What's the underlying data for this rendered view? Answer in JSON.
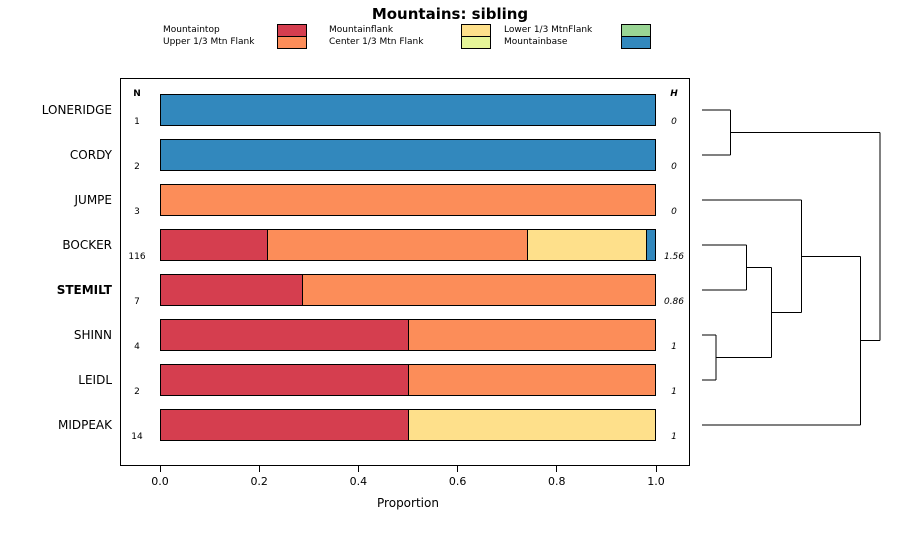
{
  "title": "Mountains: sibling",
  "legend": {
    "columns": [
      {
        "entries": [
          {
            "label": "Mountaintop",
            "color": "#d53e4f"
          },
          {
            "label": "Upper 1/3 Mtn Flank",
            "color": "#fc8d59"
          }
        ]
      },
      {
        "entries": [
          {
            "label": "Mountainflank",
            "color": "#fee08b"
          },
          {
            "label": "Center 1/3 Mtn Flank",
            "color": "#e6f598"
          }
        ]
      },
      {
        "entries": [
          {
            "label": "Lower 1/3 MtnFlank",
            "color": "#99d594"
          },
          {
            "label": "Mountainbase",
            "color": "#3288bd"
          }
        ]
      }
    ]
  },
  "chart_data": {
    "type": "bar",
    "orientation": "horizontal",
    "stacked": true,
    "title": "Mountains: sibling",
    "xlabel": "Proportion",
    "xlim": [
      0,
      1
    ],
    "xticks": [
      "0.0",
      "0.2",
      "0.4",
      "0.6",
      "0.8",
      "1.0"
    ],
    "n_header": "N",
    "h_header": "H",
    "categories": [
      "LONERIDGE",
      "CORDY",
      "JUMPE",
      "BOCKER",
      "STEMILT",
      "SHINN",
      "LEIDL",
      "MIDPEAK"
    ],
    "bold_category": "STEMILT",
    "n_values": [
      "1",
      "2",
      "3",
      "116",
      "7",
      "4",
      "2",
      "14"
    ],
    "h_values": [
      "0",
      "0",
      "0",
      "1.56",
      "0.86",
      "1",
      "1",
      "1"
    ],
    "series": [
      {
        "name": "Mountaintop",
        "color": "#d53e4f",
        "values": [
          0,
          0,
          0,
          0.2155,
          0.2857,
          0.5,
          0.5,
          0.5
        ]
      },
      {
        "name": "Upper 1/3 Mtn Flank",
        "color": "#fc8d59",
        "values": [
          0,
          0,
          1,
          0.5259,
          0.7143,
          0.5,
          0.5,
          0
        ]
      },
      {
        "name": "Mountainflank",
        "color": "#fee08b",
        "values": [
          0,
          0,
          0,
          0.2414,
          0,
          0,
          0,
          0.5
        ]
      },
      {
        "name": "Center 1/3 Mtn Flank",
        "color": "#e6f598",
        "values": [
          0,
          0,
          0,
          0,
          0,
          0,
          0,
          0
        ]
      },
      {
        "name": "Lower 1/3 MtnFlank",
        "color": "#99d594",
        "values": [
          0,
          0,
          0,
          0,
          0,
          0,
          0,
          0
        ]
      },
      {
        "name": "Mountainbase",
        "color": "#3288bd",
        "values": [
          1,
          1,
          0,
          0.0172,
          0,
          0,
          0,
          0
        ]
      }
    ]
  },
  "dendrogram": {
    "leaves": [
      "LONERIDGE",
      "CORDY",
      "JUMPE",
      "BOCKER",
      "STEMILT",
      "SHINN",
      "LEIDL",
      "MIDPEAK"
    ],
    "merges": [
      {
        "id": "SL",
        "a": "SHINN",
        "b": "LEIDL",
        "height": 0.08
      },
      {
        "id": "LC",
        "a": "LONERIDGE",
        "b": "CORDY",
        "height": 0.16
      },
      {
        "id": "BS",
        "a": "BOCKER",
        "b": "STEMILT",
        "height": 0.25
      },
      {
        "id": "BSSL",
        "a": "BS",
        "b": "SL",
        "height": 0.39
      },
      {
        "id": "JX",
        "a": "JUMPE",
        "b": "BSSL",
        "height": 0.56
      },
      {
        "id": "JM",
        "a": "JX",
        "b": "MIDPEAK",
        "height": 0.89
      },
      {
        "id": "ROOT",
        "a": "LC",
        "b": "JM",
        "height": 1.0
      }
    ]
  }
}
